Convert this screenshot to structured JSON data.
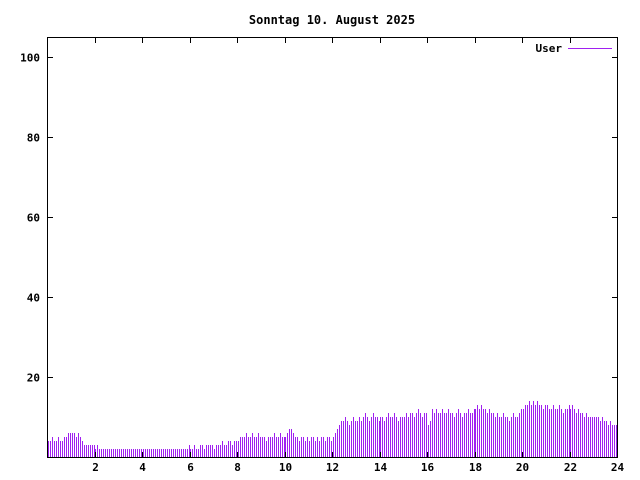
{
  "page": {
    "background": "#ffffff",
    "axis_color": "#000000"
  },
  "chart_data": {
    "type": "bar",
    "subtype": "impulses",
    "title": "Sonntag 10. August 2025",
    "legend": {
      "label": "User",
      "position": "top-right"
    },
    "series_color": "#a020f0",
    "xlabel": "",
    "ylabel": "",
    "xlim": [
      0,
      24
    ],
    "ylim": [
      0,
      105
    ],
    "xticks": [
      2,
      4,
      6,
      8,
      10,
      12,
      14,
      16,
      18,
      20,
      22,
      24
    ],
    "yticks": [
      20,
      40,
      60,
      80,
      100
    ],
    "grid": false,
    "samples_per_hour": 12,
    "x_step_hours": 0.0833333,
    "values": [
      4,
      4,
      5,
      4,
      4,
      5,
      4,
      4,
      5,
      5,
      6,
      6,
      6,
      6,
      5,
      6,
      5,
      4,
      3,
      3,
      3,
      3,
      3,
      3,
      2,
      3,
      2,
      2,
      2,
      2,
      2,
      2,
      2,
      2,
      2,
      2,
      2,
      2,
      2,
      2,
      2,
      2,
      2,
      2,
      2,
      2,
      2,
      2,
      2,
      2,
      2,
      2,
      2,
      2,
      2,
      2,
      2,
      2,
      2,
      2,
      2,
      2,
      2,
      2,
      2,
      2,
      2,
      2,
      2,
      2,
      2,
      3,
      2,
      2,
      3,
      2,
      2,
      3,
      3,
      2,
      3,
      3,
      3,
      3,
      2,
      3,
      3,
      3,
      4,
      3,
      3,
      4,
      4,
      3,
      4,
      4,
      4,
      5,
      5,
      5,
      6,
      5,
      5,
      6,
      5,
      5,
      6,
      5,
      5,
      5,
      4,
      5,
      5,
      5,
      6,
      5,
      5,
      6,
      5,
      5,
      5,
      6,
      7,
      7,
      6,
      5,
      5,
      4,
      5,
      5,
      4,
      5,
      4,
      5,
      5,
      4,
      5,
      4,
      5,
      5,
      4,
      5,
      5,
      4,
      5,
      6,
      7,
      8,
      9,
      9,
      10,
      9,
      8,
      9,
      10,
      9,
      9,
      10,
      9,
      10,
      11,
      10,
      9,
      10,
      11,
      10,
      10,
      9,
      10,
      10,
      9,
      10,
      11,
      10,
      10,
      11,
      10,
      9,
      10,
      10,
      10,
      11,
      10,
      11,
      11,
      10,
      11,
      12,
      11,
      10,
      11,
      11,
      8,
      9,
      12,
      11,
      12,
      11,
      11,
      12,
      11,
      11,
      12,
      11,
      11,
      10,
      11,
      12,
      11,
      10,
      11,
      11,
      12,
      11,
      11,
      12,
      12,
      13,
      12,
      13,
      12,
      12,
      11,
      12,
      11,
      11,
      10,
      11,
      10,
      10,
      11,
      10,
      10,
      9,
      10,
      11,
      10,
      10,
      11,
      12,
      12,
      13,
      13,
      14,
      13,
      14,
      13,
      14,
      13,
      13,
      12,
      13,
      13,
      12,
      12,
      13,
      12,
      12,
      13,
      12,
      11,
      12,
      12,
      13,
      12,
      13,
      12,
      11,
      12,
      11,
      11,
      10,
      11,
      10,
      10,
      10,
      10,
      10,
      10,
      9,
      10,
      9,
      9,
      8,
      9,
      8,
      8,
      8
    ]
  }
}
